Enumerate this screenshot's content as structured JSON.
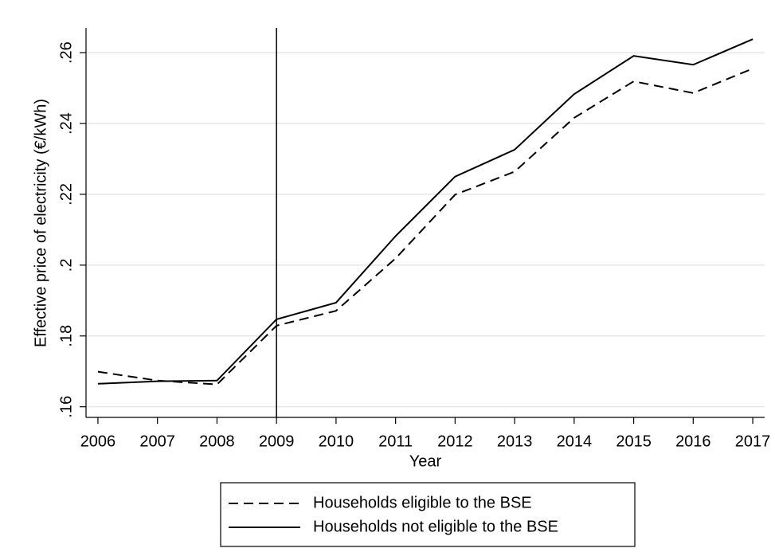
{
  "chart_data": {
    "type": "line",
    "xlabel": "Year",
    "ylabel": "Effective price of electricity (€/kWh)",
    "x": [
      2006,
      2007,
      2008,
      2009,
      2010,
      2011,
      2012,
      2013,
      2014,
      2015,
      2016,
      2017
    ],
    "series": [
      {
        "name": "Households eligible to the BSE",
        "color": "#000000",
        "style": "dashed",
        "values": [
          0.1699,
          0.1674,
          0.1663,
          0.1829,
          0.1871,
          0.2019,
          0.2199,
          0.2264,
          0.2416,
          0.2519,
          0.2486,
          0.2555
        ]
      },
      {
        "name": "Households not eligible to the BSE",
        "color": "#000000",
        "style": "solid",
        "values": [
          0.1665,
          0.1672,
          0.1674,
          0.1847,
          0.1894,
          0.2082,
          0.225,
          0.2326,
          0.2483,
          0.2591,
          0.2566,
          0.2638
        ]
      }
    ],
    "vline": 2009,
    "xlim": [
      2005.8,
      2017.2
    ],
    "xticks": [
      2006,
      2007,
      2008,
      2009,
      2010,
      2011,
      2012,
      2013,
      2014,
      2015,
      2016,
      2017
    ],
    "ylim": [
      0.157,
      0.267
    ],
    "yticks": [
      {
        "value": 0.16,
        "label": ".16"
      },
      {
        "value": 0.18,
        "label": ".18"
      },
      {
        "value": 0.2,
        "label": ".2"
      },
      {
        "value": 0.22,
        "label": ".22"
      },
      {
        "value": 0.24,
        "label": ".24"
      },
      {
        "value": 0.26,
        "label": ".26"
      }
    ],
    "grid": true,
    "legend": "bottom"
  }
}
